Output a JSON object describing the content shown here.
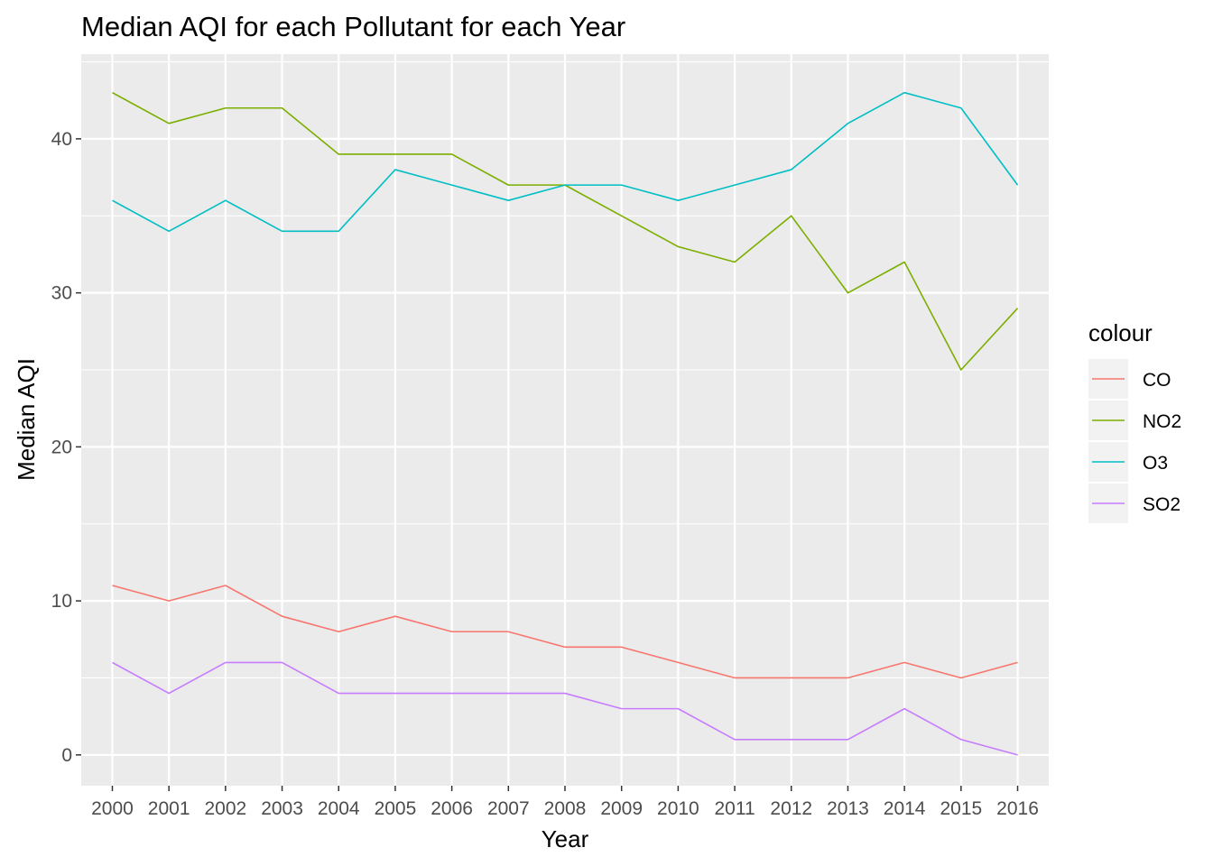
{
  "chart_data": {
    "type": "line",
    "title": "Median AQI for each Pollutant for each Year",
    "xlabel": "Year",
    "ylabel": "Median AQI",
    "x": [
      2000,
      2001,
      2002,
      2003,
      2004,
      2005,
      2006,
      2007,
      2008,
      2009,
      2010,
      2011,
      2012,
      2013,
      2014,
      2015,
      2016
    ],
    "x_tick_labels": [
      "2000",
      "2001",
      "2002",
      "2003",
      "2004",
      "2005",
      "2006",
      "2007",
      "2008",
      "2009",
      "2010",
      "2011",
      "2012",
      "2013",
      "2014",
      "2015",
      "2016"
    ],
    "ylim": [
      -2,
      45.5
    ],
    "y_ticks": [
      0,
      10,
      20,
      30,
      40
    ],
    "y_tick_labels": [
      "0",
      "10",
      "20",
      "30",
      "40"
    ],
    "grid": true,
    "legend": {
      "title": "colour",
      "position": "right"
    },
    "background": "#EBEBEB",
    "series": [
      {
        "name": "CO",
        "color": "#F8766D",
        "values": [
          11,
          10,
          11,
          9,
          8,
          9,
          8,
          8,
          7,
          7,
          6,
          5,
          5,
          5,
          6,
          5,
          6
        ]
      },
      {
        "name": "NO2",
        "color": "#7CAE00",
        "values": [
          43,
          41,
          42,
          42,
          39,
          39,
          39,
          37,
          37,
          35,
          33,
          32,
          35,
          30,
          32,
          25,
          29
        ]
      },
      {
        "name": "O3",
        "color": "#00BFC4",
        "values": [
          36,
          34,
          36,
          34,
          34,
          38,
          37,
          36,
          37,
          37,
          36,
          37,
          38,
          41,
          43,
          42,
          37
        ]
      },
      {
        "name": "SO2",
        "color": "#C77CFF",
        "values": [
          6,
          4,
          6,
          6,
          4,
          4,
          4,
          4,
          4,
          3,
          3,
          1,
          1,
          1,
          3,
          1,
          0
        ]
      }
    ]
  }
}
